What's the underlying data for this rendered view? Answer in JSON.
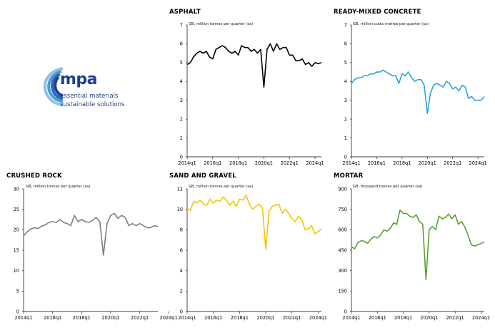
{
  "logo": {
    "wordmark": "mpa",
    "tagline_1": "essential materials",
    "tagline_2": "sustainable solutions",
    "colors": [
      "#1f3f8f",
      "#2a67b8",
      "#4a9ad8",
      "#8cc3ea"
    ]
  },
  "chart_data": [
    {
      "id": "asphalt",
      "type": "line",
      "title": "ASPHALT",
      "ylabel": "GB, million tonnes per quarter (sa)",
      "color": "#000000",
      "ylim": [
        0,
        7
      ],
      "yticks": [
        0,
        1,
        2,
        3,
        4,
        5,
        6,
        7
      ],
      "xticks": [
        "2014q1",
        "2016q1",
        "2018q1",
        "2020q1",
        "2022q1",
        "2024q1"
      ],
      "x_start": "2014q1",
      "values": [
        4.9,
        5.0,
        5.3,
        5.5,
        5.6,
        5.5,
        5.6,
        5.3,
        5.2,
        5.7,
        5.8,
        5.9,
        5.8,
        5.6,
        5.5,
        5.6,
        5.4,
        5.9,
        5.8,
        5.8,
        5.6,
        5.7,
        5.5,
        5.7,
        3.7,
        5.7,
        6.0,
        5.6,
        6.0,
        5.7,
        5.8,
        5.8,
        5.4,
        5.4,
        5.1,
        5.1,
        5.2,
        4.9,
        5.0,
        4.8,
        5.0,
        4.95,
        5.0
      ]
    },
    {
      "id": "ready-mixed-concrete",
      "type": "line",
      "title": "READY-MIXED CONCRETE",
      "ylabel": "GB, million cubic metres per quarter (sa)",
      "color": "#29a3e0",
      "ylim": [
        0,
        7
      ],
      "yticks": [
        0,
        1,
        2,
        3,
        4,
        5,
        6,
        7
      ],
      "xticks": [
        "2014q1",
        "2016q1",
        "2018q1",
        "2020q1",
        "2022q1",
        "2024q1"
      ],
      "x_start": "2014q1",
      "values": [
        3.9,
        4.1,
        4.2,
        4.2,
        4.3,
        4.3,
        4.4,
        4.4,
        4.5,
        4.5,
        4.6,
        4.5,
        4.4,
        4.3,
        4.3,
        3.9,
        4.4,
        4.3,
        4.5,
        4.2,
        4.0,
        4.1,
        4.1,
        3.8,
        2.3,
        3.4,
        3.8,
        3.9,
        3.8,
        3.7,
        4.0,
        3.9,
        3.6,
        3.7,
        3.5,
        3.8,
        3.7,
        3.1,
        3.2,
        3.0,
        3.0,
        3.0,
        3.2
      ]
    },
    {
      "id": "crushed-rock",
      "type": "line",
      "title": "CRUSHED ROCK",
      "ylabel": "GB, million tonnes per quarter (sa)",
      "color": "#7f7f7f",
      "ylim": [
        0,
        30
      ],
      "yticks": [
        0,
        5,
        10,
        15,
        20,
        25,
        30
      ],
      "xticks": [
        "2014q1",
        "2016q1",
        "2018q1",
        "2020q1",
        "2022q1",
        "2024q1"
      ],
      "x_start": "2014q1",
      "values": [
        18.5,
        19.5,
        20.2,
        20.5,
        20.3,
        20.9,
        21.2,
        21.8,
        22.0,
        21.8,
        22.5,
        21.8,
        21.5,
        21.0,
        23.5,
        22.0,
        22.5,
        22.0,
        21.8,
        22.3,
        23.0,
        22.0,
        13.8,
        21.5,
        23.5,
        24.0,
        22.8,
        23.5,
        23.0,
        21.0,
        21.5,
        21.0,
        21.5,
        21.0,
        20.5,
        20.5,
        21.0,
        20.8
      ]
    },
    {
      "id": "sand-and-gravel",
      "type": "line",
      "title": "SAND AND GRAVEL",
      "ylabel": "GB, million tonnes per quarter (sa)",
      "color": "#f2c500",
      "ylim": [
        0,
        12
      ],
      "yticks": [
        0,
        2,
        4,
        6,
        8,
        10,
        12
      ],
      "xticks": [
        "2014q1",
        "2016q1",
        "2018q1",
        "2020q1",
        "2022q1",
        "2024q1"
      ],
      "x_start": "2014q1",
      "values": [
        10.1,
        9.9,
        10.8,
        10.6,
        10.9,
        10.5,
        10.4,
        11.0,
        10.6,
        10.9,
        10.8,
        11.2,
        10.9,
        10.4,
        10.8,
        10.3,
        11.0,
        10.9,
        11.4,
        10.5,
        10.0,
        10.3,
        10.5,
        10.1,
        6.1,
        9.8,
        10.3,
        10.4,
        10.5,
        9.6,
        10.0,
        9.6,
        9.1,
        8.8,
        9.3,
        9.0,
        8.0,
        8.1,
        8.4,
        7.6,
        7.8,
        8.1
      ]
    },
    {
      "id": "mortar",
      "type": "line",
      "title": "MORTAR",
      "ylabel": "GB, thousand tonnes per quarter (sa)",
      "color": "#5aa02c",
      "ylim": [
        0,
        900
      ],
      "yticks": [
        0,
        150,
        300,
        450,
        600,
        750,
        900
      ],
      "xticks": [
        "2014q1",
        "2016q1",
        "2018q1",
        "2020q1",
        "2022q1",
        "2024q1"
      ],
      "x_start": "2014q1",
      "values": [
        475,
        460,
        505,
        520,
        515,
        500,
        530,
        550,
        540,
        560,
        600,
        590,
        610,
        650,
        640,
        745,
        720,
        720,
        700,
        690,
        710,
        660,
        640,
        235,
        600,
        625,
        600,
        700,
        680,
        690,
        715,
        680,
        710,
        640,
        660,
        620,
        560,
        490,
        480,
        490,
        500,
        510
      ]
    }
  ]
}
